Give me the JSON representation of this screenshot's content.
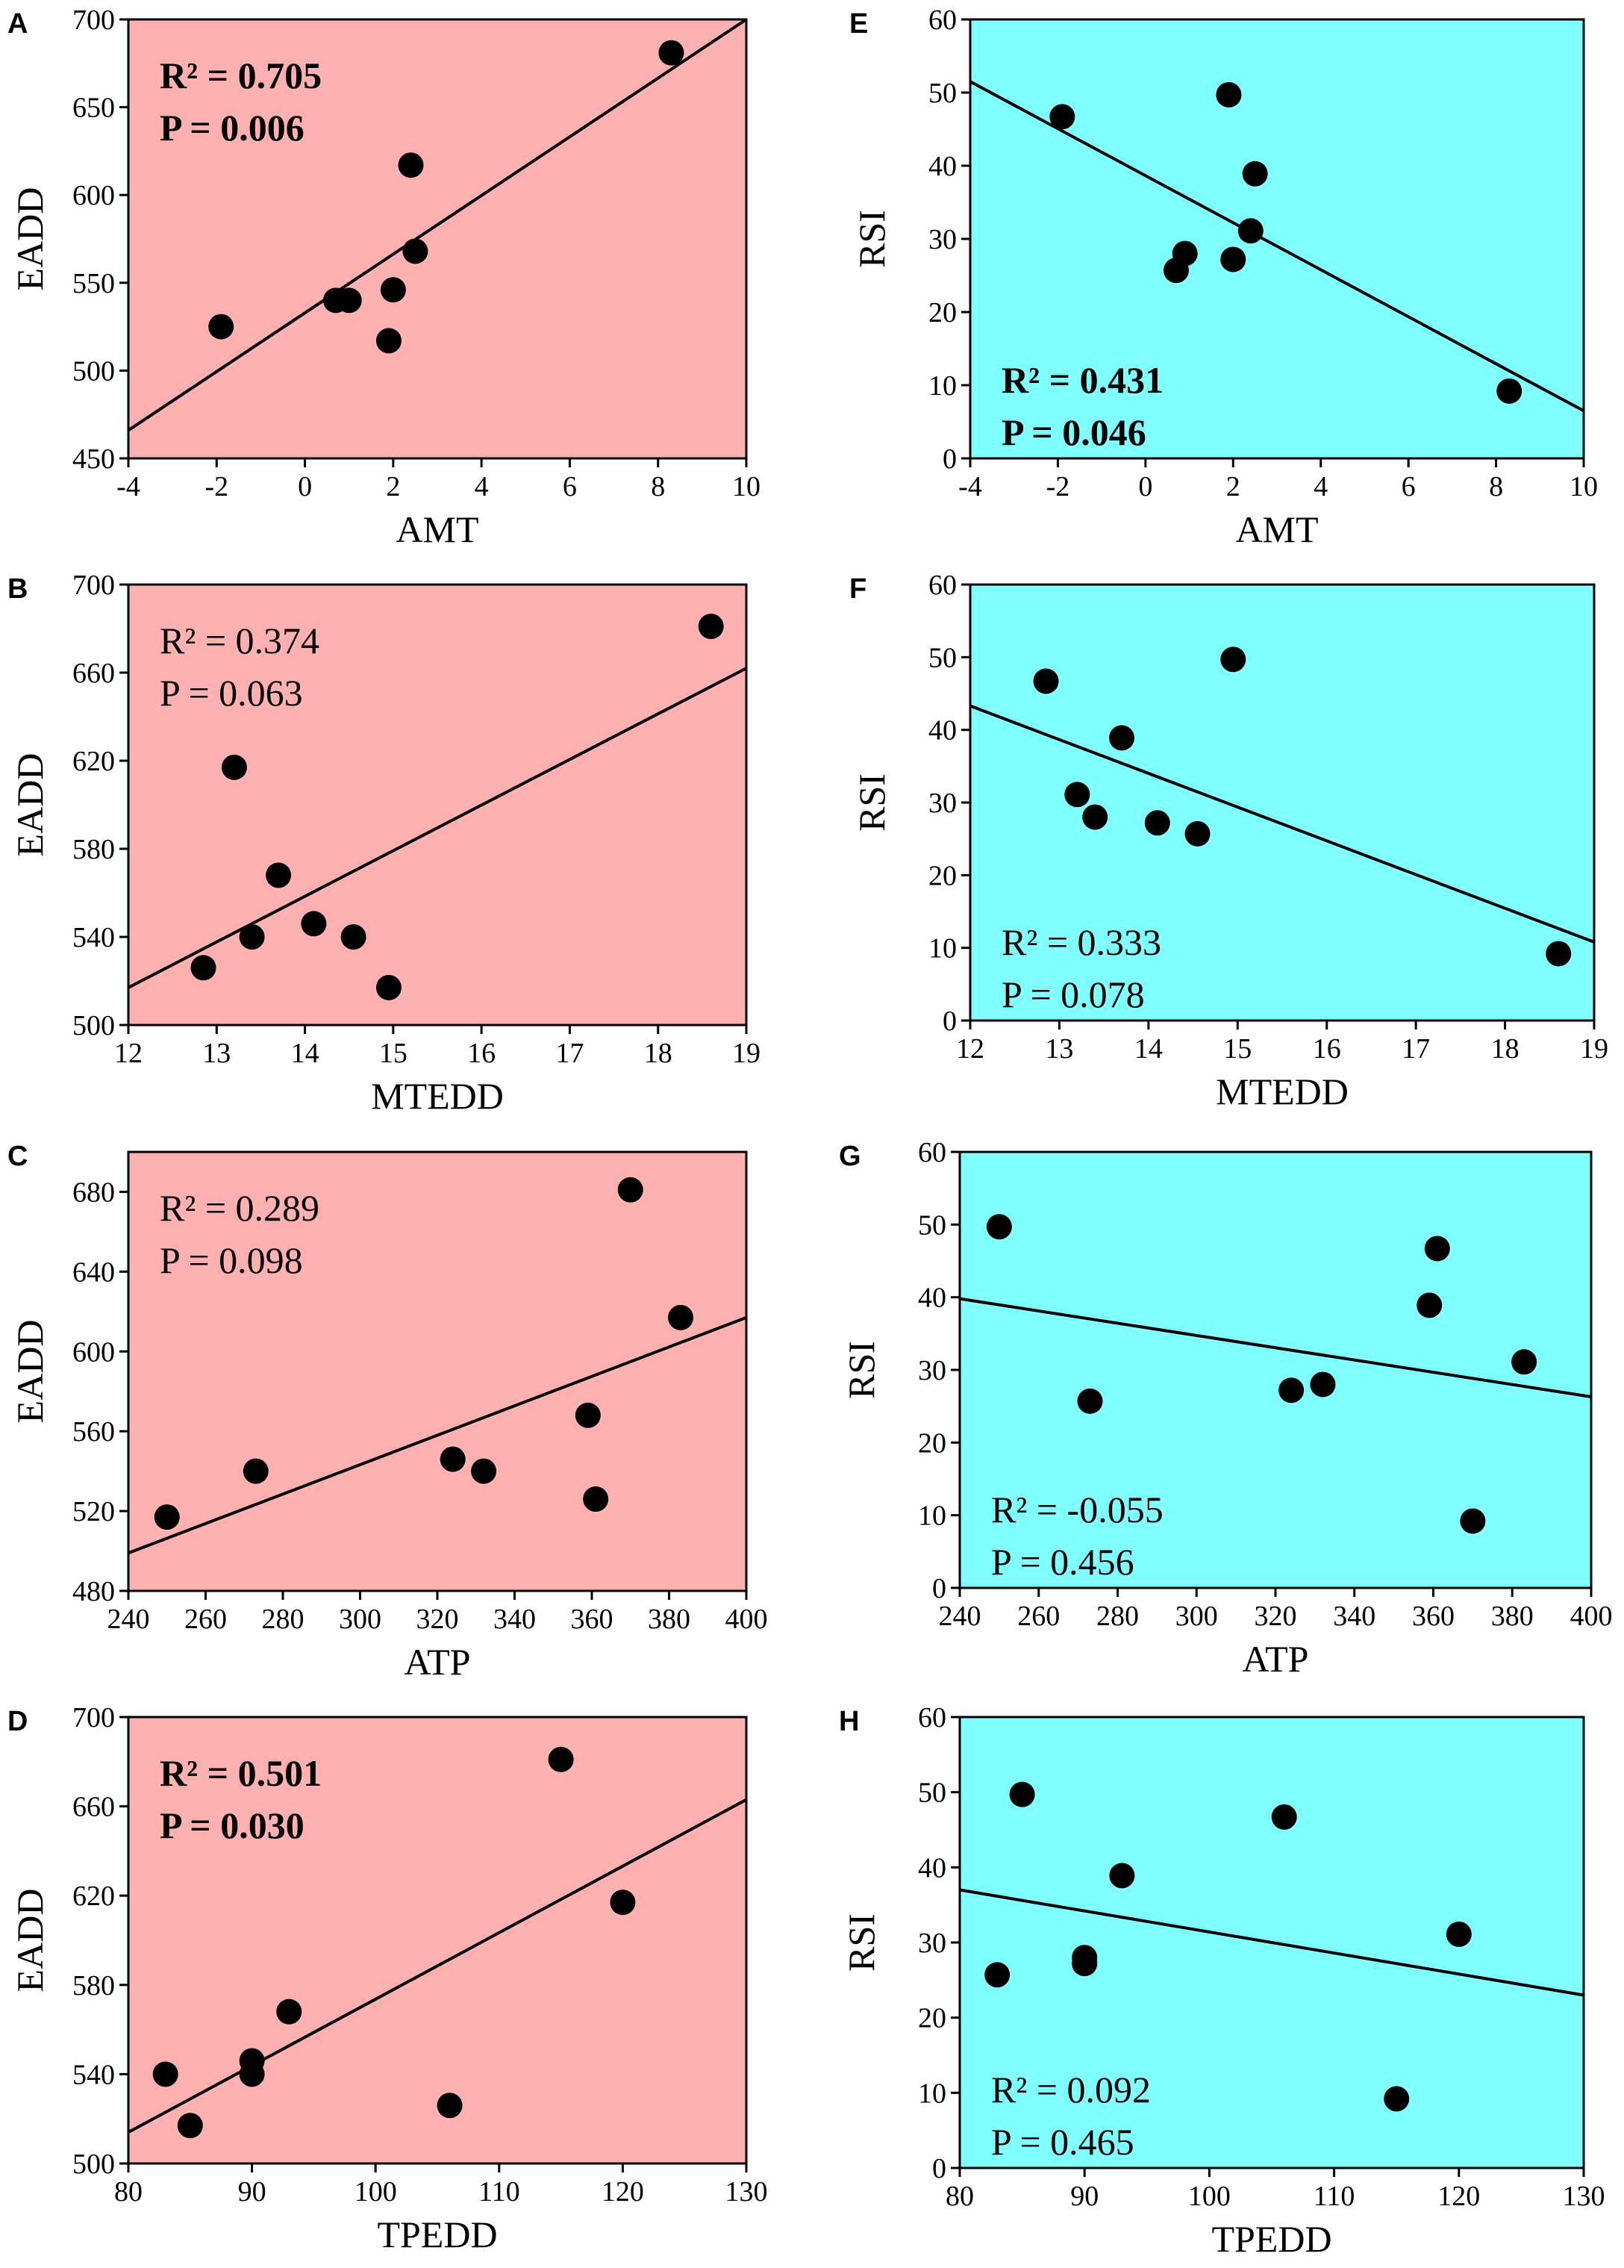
{
  "colors": {
    "pink": "#FFB0B0",
    "cyan": "#7FFFFF",
    "ink": "#000000"
  },
  "chart_data": [
    {
      "panel": "A",
      "type": "scatter",
      "xlabel": "AMT",
      "ylabel": "EADD",
      "xlim": [
        -4,
        10
      ],
      "ylim": [
        450,
        700
      ],
      "xticks": [
        -4,
        -2,
        0,
        2,
        4,
        6,
        8,
        10
      ],
      "yticks": [
        450,
        500,
        550,
        600,
        650,
        700
      ],
      "points": [
        [
          -1.9,
          525
        ],
        [
          0.7,
          540
        ],
        [
          1.0,
          540
        ],
        [
          2.0,
          546
        ],
        [
          1.9,
          517
        ],
        [
          2.4,
          617
        ],
        [
          2.5,
          568
        ],
        [
          8.3,
          681
        ]
      ],
      "fit": [
        [
          -4,
          466
        ],
        [
          10,
          700
        ]
      ],
      "r2": "R² = 0.705",
      "p": "P = 0.006",
      "bold": true
    },
    {
      "panel": "E",
      "type": "scatter",
      "xlabel": "AMT",
      "ylabel": "RSI",
      "xlim": [
        -4,
        10
      ],
      "ylim": [
        0,
        60
      ],
      "xticks": [
        -4,
        -2,
        0,
        2,
        4,
        6,
        8,
        10
      ],
      "yticks": [
        0,
        10,
        20,
        30,
        40,
        50,
        60
      ],
      "points": [
        [
          -1.9,
          46.7
        ],
        [
          0.7,
          25.7
        ],
        [
          0.9,
          28.0
        ],
        [
          2.0,
          27.2
        ],
        [
          1.9,
          49.7
        ],
        [
          2.5,
          38.9
        ],
        [
          2.4,
          31.1
        ],
        [
          8.3,
          9.2
        ]
      ],
      "fit": [
        [
          -4,
          51.5
        ],
        [
          10,
          6.5
        ]
      ],
      "r2": "R² = 0.431",
      "p": "P = 0.046",
      "bold": true
    },
    {
      "panel": "B",
      "type": "scatter",
      "xlabel": "MTEDD",
      "ylabel": "EADD",
      "xlim": [
        12,
        19
      ],
      "ylim": [
        500,
        700
      ],
      "xticks": [
        12,
        13,
        14,
        15,
        16,
        17,
        18,
        19
      ],
      "yticks": [
        500,
        540,
        580,
        620,
        660,
        700
      ],
      "points": [
        [
          12.85,
          526
        ],
        [
          13.2,
          617
        ],
        [
          13.4,
          540
        ],
        [
          13.7,
          568
        ],
        [
          14.1,
          546
        ],
        [
          14.55,
          540
        ],
        [
          14.95,
          517
        ],
        [
          18.6,
          681
        ]
      ],
      "fit": [
        [
          12,
          517
        ],
        [
          19,
          662
        ]
      ],
      "r2": "R² = 0.374",
      "p": "P = 0.063",
      "bold": false
    },
    {
      "panel": "F",
      "type": "scatter",
      "xlabel": "MTEDD",
      "ylabel": "RSI",
      "xlim": [
        12,
        19
      ],
      "ylim": [
        0,
        60
      ],
      "xticks": [
        12,
        13,
        14,
        15,
        16,
        17,
        18,
        19
      ],
      "yticks": [
        0,
        10,
        20,
        30,
        40,
        50,
        60
      ],
      "points": [
        [
          12.85,
          46.7
        ],
        [
          13.2,
          31.1
        ],
        [
          13.4,
          28.0
        ],
        [
          13.7,
          38.9
        ],
        [
          14.1,
          27.2
        ],
        [
          14.55,
          25.7
        ],
        [
          14.95,
          49.7
        ],
        [
          18.6,
          9.2
        ]
      ],
      "fit": [
        [
          12,
          43.3
        ],
        [
          19,
          10.8
        ]
      ],
      "r2": "R² = 0.333",
      "p": "P = 0.078",
      "bold": false
    },
    {
      "panel": "C",
      "type": "scatter",
      "xlabel": "ATP",
      "ylabel": "EADD",
      "xlim": [
        240,
        400
      ],
      "ylim": [
        480,
        700
      ],
      "xticks": [
        240,
        260,
        280,
        300,
        320,
        340,
        360,
        380,
        400
      ],
      "yticks": [
        480,
        520,
        560,
        600,
        640,
        680
      ],
      "points": [
        [
          250,
          517
        ],
        [
          273,
          540
        ],
        [
          324,
          546
        ],
        [
          332,
          540
        ],
        [
          359,
          568
        ],
        [
          361,
          526
        ],
        [
          370,
          681
        ],
        [
          383,
          617
        ]
      ],
      "fit": [
        [
          240,
          499
        ],
        [
          400,
          617
        ]
      ],
      "r2": "R² = 0.289",
      "p": "P = 0.098",
      "bold": false
    },
    {
      "panel": "G",
      "type": "scatter",
      "xlabel": "ATP",
      "ylabel": "RSI",
      "xlim": [
        240,
        400
      ],
      "ylim": [
        0,
        60
      ],
      "xticks": [
        240,
        260,
        280,
        300,
        320,
        340,
        360,
        380,
        400
      ],
      "yticks": [
        0,
        10,
        20,
        30,
        40,
        50,
        60
      ],
      "points": [
        [
          250,
          49.7
        ],
        [
          273,
          25.7
        ],
        [
          324,
          27.2
        ],
        [
          332,
          28.0
        ],
        [
          359,
          38.9
        ],
        [
          361,
          46.7
        ],
        [
          370,
          9.2
        ],
        [
          383,
          31.1
        ]
      ],
      "fit": [
        [
          240,
          39.8
        ],
        [
          400,
          26.3
        ]
      ],
      "r2": "R² = -0.055",
      "p": "P = 0.456",
      "bold": false
    },
    {
      "panel": "D",
      "type": "scatter",
      "xlabel": "TPEDD",
      "ylabel": "EADD",
      "xlim": [
        80,
        130
      ],
      "ylim": [
        500,
        700
      ],
      "xticks": [
        80,
        90,
        100,
        110,
        120,
        130
      ],
      "yticks": [
        500,
        540,
        580,
        620,
        660,
        700
      ],
      "points": [
        [
          83,
          540
        ],
        [
          85,
          517
        ],
        [
          90,
          546
        ],
        [
          90,
          540
        ],
        [
          93,
          568
        ],
        [
          106,
          526
        ],
        [
          115,
          681
        ],
        [
          120,
          617
        ]
      ],
      "fit": [
        [
          80,
          514
        ],
        [
          130,
          663
        ]
      ],
      "r2": "R² = 0.501",
      "p": "P = 0.030",
      "bold": true
    },
    {
      "panel": "H",
      "type": "scatter",
      "xlabel": "TPEDD",
      "ylabel": "RSI",
      "xlim": [
        80,
        130
      ],
      "ylim": [
        0,
        60
      ],
      "xticks": [
        80,
        90,
        100,
        110,
        120,
        130
      ],
      "yticks": [
        0,
        10,
        20,
        30,
        40,
        50,
        60
      ],
      "points": [
        [
          83,
          25.7
        ],
        [
          85,
          49.7
        ],
        [
          90,
          28.0
        ],
        [
          90,
          27.2
        ],
        [
          93,
          38.9
        ],
        [
          106,
          46.7
        ],
        [
          115,
          9.2
        ],
        [
          120,
          31.1
        ]
      ],
      "fit": [
        [
          80,
          37.0
        ],
        [
          130,
          23.0
        ]
      ],
      "r2": "R² = 0.092",
      "p": "P = 0.465",
      "bold": false
    }
  ]
}
